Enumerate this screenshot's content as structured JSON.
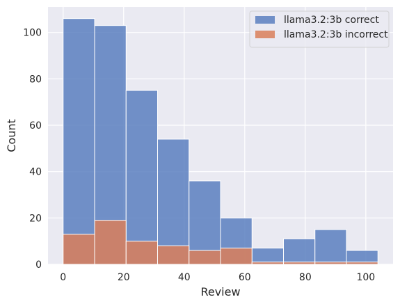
{
  "chart_data": {
    "type": "bar",
    "xlabel": "Review",
    "ylabel": "Count",
    "xlim": [
      -5,
      109
    ],
    "ylim": [
      0,
      111
    ],
    "grid": true,
    "legend_position": "top-right",
    "x_ticks": [
      0,
      20,
      40,
      60,
      80,
      100
    ],
    "y_ticks": [
      0,
      20,
      40,
      60,
      80,
      100
    ],
    "bin_edges": [
      0,
      10.4,
      20.8,
      31.2,
      41.6,
      52,
      62.4,
      72.8,
      83.2,
      93.6,
      104
    ],
    "series": [
      {
        "name": "llama3.2:3b correct",
        "color": "#5a7fbf",
        "values": [
          106,
          103,
          75,
          54,
          36,
          20,
          7,
          11,
          15,
          6
        ]
      },
      {
        "name": "llama3.2:3b incorrect",
        "color": "#d97f5b",
        "values": [
          13,
          19,
          10,
          8,
          6,
          7,
          1,
          1,
          1,
          1
        ]
      }
    ]
  }
}
